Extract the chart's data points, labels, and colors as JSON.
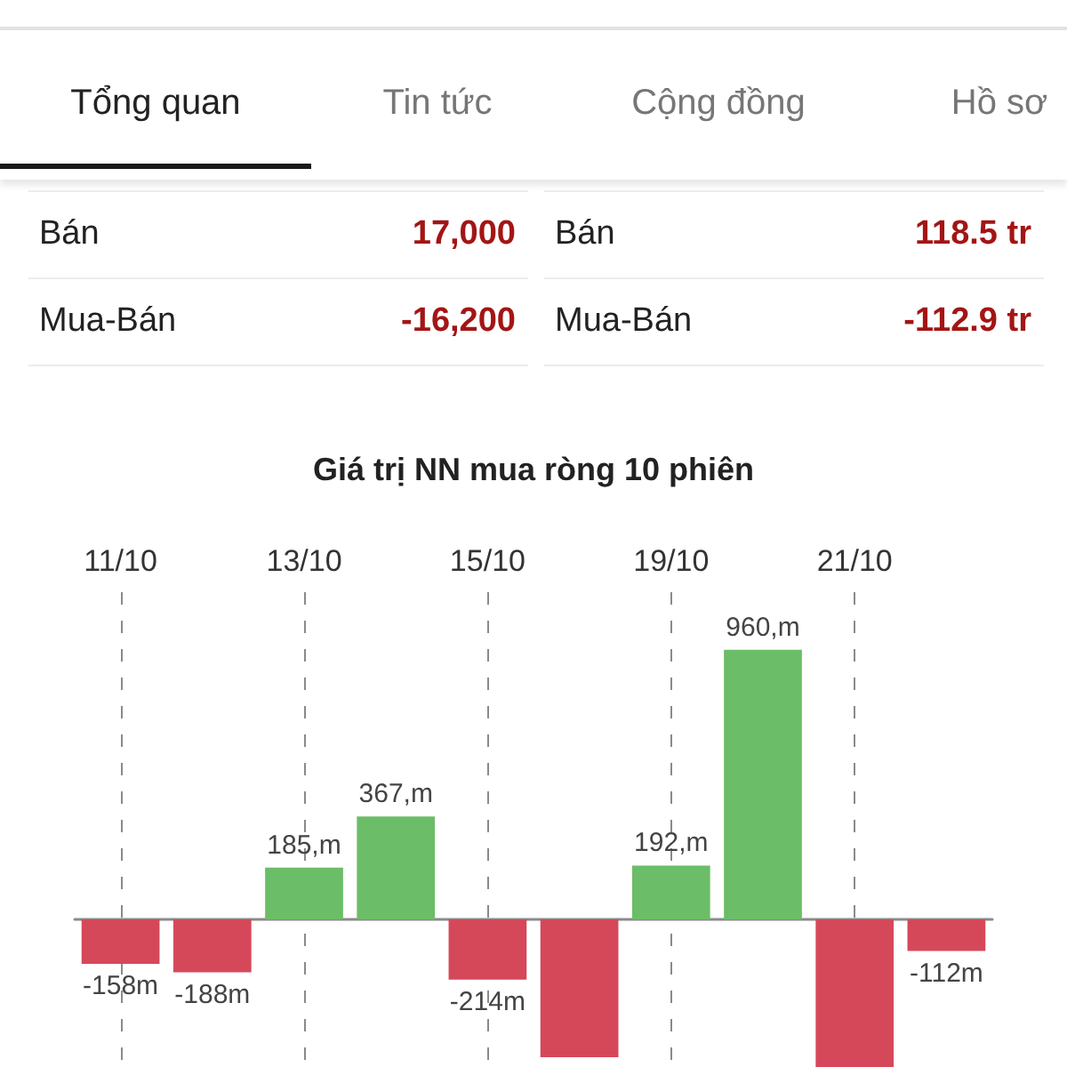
{
  "chart_data": [
    {
      "type": "other",
      "annotations": [
        "Tổng quan",
        "Tin tức",
        "Cộng đồng",
        "Hồ sơ"
      ]
    },
    {
      "type": "other",
      "annotations": [
        "Bán",
        "17,000",
        "Bán",
        "118.5 tr",
        "Mua-Bán",
        "-16,200",
        "Mua-Bán",
        "-112.9 tr"
      ]
    },
    {
      "type": "bar",
      "title": "Giá trị NN mua ròng 10 phiên",
      "categories": [
        "11/10",
        null,
        "13/10",
        null,
        "15/10",
        null,
        "19/10",
        null,
        "21/10",
        null
      ],
      "values": [
        -158,
        -188,
        185,
        367,
        -214,
        -490,
        192,
        960,
        -525,
        -112
      ],
      "value_labels": [
        "-158m",
        "-188m",
        "185,m",
        "367,m",
        "-214m",
        null,
        "192,m",
        "960,m",
        null,
        "-112m"
      ],
      "colors": [
        "#d5485a",
        "#d5485a",
        "#6cbd67",
        "#6cbd67",
        "#d5485a",
        "#d5485a",
        "#6cbd67",
        "#6cbd67",
        "#d5485a",
        "#d5485a"
      ],
      "ylim": [
        -525,
        1165
      ],
      "grid": "x",
      "tick_labels": "x"
    }
  ]
}
